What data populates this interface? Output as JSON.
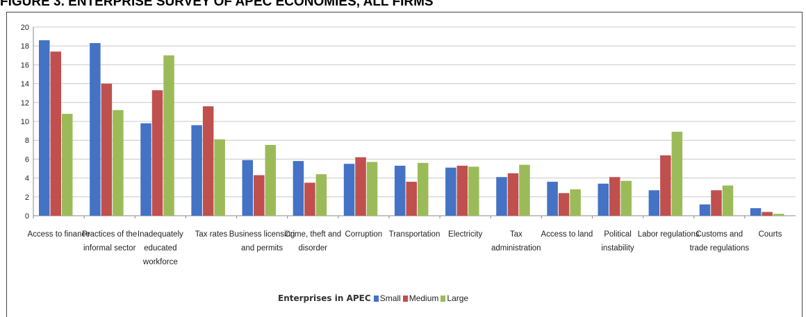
{
  "title": "FIGURE 3. ENTERPRISE SURVEY OF APEC ECONOMIES, ALL FIRMS",
  "colors": {
    "small": "#4472C4",
    "medium": "#C0504D",
    "large": "#9BBB59",
    "grid": "#c8c8c8",
    "axis": "#888888"
  },
  "chart_data": {
    "type": "bar",
    "title": "FIGURE 3. ENTERPRISE SURVEY OF APEC ECONOMIES, ALL FIRMS",
    "xlabel": "",
    "ylabel": "",
    "ylim": [
      0,
      20
    ],
    "yticks": [
      0,
      2,
      4,
      6,
      8,
      10,
      12,
      14,
      16,
      18,
      20
    ],
    "grid": true,
    "legend_title": "Enterprises in APEC",
    "legend_position": "bottom",
    "categories": [
      [
        "Access to finance"
      ],
      [
        "Practices of the",
        "informal sector"
      ],
      [
        "Inadequately",
        "educated",
        "workforce"
      ],
      [
        "Tax rates"
      ],
      [
        "Business licensing",
        "and permits"
      ],
      [
        "Crime, theft and",
        "disorder"
      ],
      [
        "Corruption"
      ],
      [
        "Transportation"
      ],
      [
        "Electricity"
      ],
      [
        "Tax",
        "administration"
      ],
      [
        "Access to land"
      ],
      [
        "Political",
        "instability"
      ],
      [
        "Labor regulations"
      ],
      [
        "Customs and",
        "trade regulations"
      ],
      [
        "Courts"
      ]
    ],
    "series": [
      {
        "name": "Small",
        "color": "#4472C4",
        "values": [
          18.6,
          18.3,
          9.8,
          9.6,
          5.9,
          5.8,
          5.5,
          5.3,
          5.1,
          4.1,
          3.6,
          3.4,
          2.7,
          1.2,
          0.8
        ]
      },
      {
        "name": "Medium",
        "color": "#C0504D",
        "values": [
          17.4,
          14.0,
          13.3,
          11.6,
          4.3,
          3.5,
          6.2,
          3.6,
          5.3,
          4.5,
          2.4,
          4.1,
          6.4,
          2.7,
          0.4
        ]
      },
      {
        "name": "Large",
        "color": "#9BBB59",
        "values": [
          10.8,
          11.2,
          17.0,
          8.1,
          7.5,
          4.4,
          5.7,
          5.6,
          5.2,
          5.4,
          2.8,
          3.7,
          8.9,
          3.2,
          0.2
        ]
      }
    ]
  }
}
